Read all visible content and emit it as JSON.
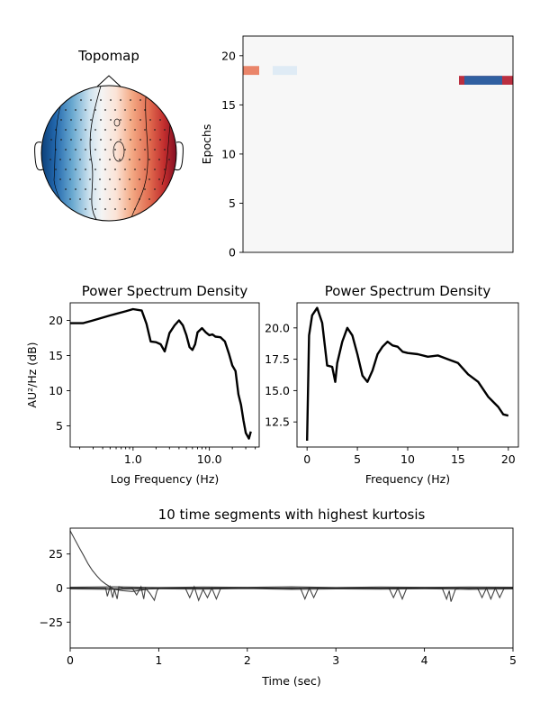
{
  "chart_data": [
    {
      "type": "heatmap",
      "panel": "topomap",
      "title": "Topomap",
      "colormap": "RdBu_r"
    },
    {
      "type": "heatmap",
      "panel": "epochs-image",
      "title": "",
      "ylabel": "Epochs",
      "ylim": [
        0,
        22
      ],
      "yticks": [
        "0",
        "5",
        "10",
        "15",
        "20"
      ],
      "rows": [
        {
          "epoch": 18,
          "x_start": 0.0,
          "x_end": 0.06,
          "value": 0.8,
          "color": "#e8785a"
        },
        {
          "epoch": 18,
          "x_start": 0.11,
          "x_end": 0.2,
          "value": -0.2,
          "color": "#dbe9f4"
        },
        {
          "epoch": 17,
          "x_start": 0.8,
          "x_end": 1.0,
          "value": 1.0,
          "color": "#b2182b"
        },
        {
          "epoch": 17,
          "x_start": 0.82,
          "x_end": 0.96,
          "value": -0.9,
          "color": "#2166ac"
        }
      ]
    },
    {
      "type": "line",
      "panel": "psd-log",
      "title": "Power Spectrum Density",
      "xlabel": "Log Frequency (Hz)",
      "ylabel": "AU²/Hz (dB)",
      "xscale": "log",
      "xlim": [
        0.15,
        45
      ],
      "ylim": [
        2,
        22.5
      ],
      "xticks": [
        "1.0",
        "10.0"
      ],
      "yticks": [
        "5",
        "10",
        "15",
        "20"
      ],
      "x": [
        0.15,
        0.22,
        0.3,
        0.5,
        0.8,
        1.0,
        1.3,
        1.5,
        1.7,
        2.0,
        2.3,
        2.6,
        3.0,
        3.5,
        4.0,
        4.5,
        5.0,
        5.5,
        6.0,
        6.5,
        7.0,
        8.0,
        9.0,
        10.0,
        11.0,
        12.0,
        14.0,
        16.0,
        18.0,
        20.0,
        22.0,
        24.0,
        26.0,
        28.0,
        30.0,
        33.0,
        35.0
      ],
      "y": [
        19.6,
        19.6,
        20.0,
        20.7,
        21.3,
        21.6,
        21.4,
        19.5,
        17.0,
        16.9,
        16.6,
        15.6,
        18.2,
        19.3,
        20.0,
        19.3,
        17.9,
        16.2,
        15.8,
        16.6,
        18.3,
        18.9,
        18.3,
        17.9,
        18.0,
        17.7,
        17.6,
        17.0,
        15.3,
        13.6,
        12.8,
        9.5,
        8.0,
        5.8,
        4.0,
        3.2,
        4.2
      ]
    },
    {
      "type": "line",
      "panel": "psd-linear",
      "title": "Power Spectrum Density",
      "xlabel": "Frequency (Hz)",
      "ylabel": "",
      "xlim": [
        -1,
        21
      ],
      "ylim": [
        10.5,
        22
      ],
      "xticks": [
        "0",
        "5",
        "10",
        "15",
        "20"
      ],
      "yticks": [
        "12.5",
        "15.0",
        "17.5",
        "20.0"
      ],
      "x": [
        0.0,
        0.2,
        0.5,
        1.0,
        1.5,
        2.0,
        2.5,
        2.8,
        3.0,
        3.5,
        4.0,
        4.5,
        5.0,
        5.5,
        6.0,
        6.5,
        7.0,
        7.5,
        8.0,
        8.5,
        9.0,
        9.5,
        10.0,
        11.0,
        12.0,
        13.0,
        14.0,
        15.0,
        16.0,
        17.0,
        18.0,
        18.5,
        19.0,
        19.5,
        20.0
      ],
      "y": [
        11.0,
        19.4,
        21.0,
        21.6,
        20.4,
        17.0,
        16.9,
        15.7,
        17.2,
        18.9,
        20.0,
        19.4,
        17.9,
        16.2,
        15.7,
        16.6,
        17.9,
        18.5,
        18.9,
        18.6,
        18.5,
        18.1,
        18.0,
        17.9,
        17.7,
        17.8,
        17.5,
        17.2,
        16.3,
        15.7,
        14.5,
        14.1,
        13.7,
        13.1,
        13.0
      ]
    },
    {
      "type": "line",
      "panel": "time-segments",
      "title": "10 time segments with highest kurtosis",
      "xlabel": "Time (sec)",
      "ylabel": "",
      "xlim": [
        0,
        5
      ],
      "ylim": [
        -44,
        44
      ],
      "xticks": [
        "0",
        "1",
        "2",
        "3",
        "4",
        "5"
      ],
      "yticks": [
        "−25",
        "0",
        "25"
      ],
      "series": [
        {
          "x": [
            0,
            0.05,
            0.1,
            0.15,
            0.2,
            0.25,
            0.3,
            0.35,
            0.4,
            0.45,
            0.5,
            0.6,
            0.7,
            0.8,
            0.9,
            1.0,
            1.5,
            2.0,
            3.0,
            4.0,
            5.0
          ],
          "y": [
            42,
            36,
            30,
            24,
            18,
            13,
            9,
            5.5,
            3,
            1,
            -1,
            -2,
            -2.5,
            -1.5,
            -0.5,
            0,
            0,
            0,
            0,
            0,
            0
          ]
        },
        {
          "x": [
            0,
            0.4,
            0.42,
            0.45,
            0.48,
            0.5,
            0.53,
            0.55,
            0.6,
            0.7,
            0.75,
            0.8,
            0.83,
            0.85,
            0.9,
            0.95,
            0.98,
            1.0,
            1.3,
            1.35,
            1.4,
            1.45,
            1.5,
            1.55,
            1.6,
            1.65,
            1.7,
            2.0,
            2.6,
            2.65,
            2.7,
            2.75,
            2.8,
            3.0,
            3.6,
            3.65,
            3.7,
            3.75,
            3.8,
            3.9,
            4.2,
            4.25,
            4.28,
            4.3,
            4.35,
            4.4,
            4.6,
            4.65,
            4.7,
            4.75,
            4.8,
            4.85,
            4.9,
            5.0
          ],
          "y": [
            0,
            0,
            -6,
            1,
            -7,
            -1,
            -8,
            1,
            0,
            0,
            -5,
            1,
            -8,
            0,
            -4,
            -9,
            -2,
            0,
            0,
            -7,
            1,
            -9,
            -1,
            -7,
            0,
            -8,
            0,
            0,
            0,
            -8,
            0,
            -7,
            0,
            0,
            0,
            -7,
            0,
            -8,
            0,
            0,
            0,
            -8,
            -2,
            -10,
            -1,
            0,
            0,
            -7,
            0,
            -8,
            0,
            -7,
            0,
            0
          ]
        },
        {
          "x": [
            0,
            0.5,
            1.0,
            1.5,
            2.0,
            2.5,
            3.0,
            3.5,
            4.0,
            4.5,
            5.0
          ],
          "y": [
            0.6,
            0.9,
            0.4,
            0.8,
            0.5,
            0.9,
            0.4,
            0.8,
            0.5,
            0.8,
            0.6
          ]
        },
        {
          "x": [
            0,
            0.5,
            1.0,
            1.5,
            2.0,
            2.5,
            3.0,
            3.5,
            4.0,
            4.5,
            5.0
          ],
          "y": [
            -0.6,
            -0.9,
            -0.5,
            -0.8,
            -0.4,
            -0.9,
            -0.6,
            -0.8,
            -0.5,
            -0.9,
            -0.6
          ]
        },
        {
          "x": [
            0,
            0.5,
            1.0,
            1.5,
            2.0,
            2.5,
            3.0,
            3.5,
            4.0,
            4.5,
            5.0
          ],
          "y": [
            0.2,
            -0.3,
            0.3,
            -0.2,
            0.2,
            -0.3,
            0.3,
            -0.2,
            0.3,
            -0.3,
            0.2
          ]
        }
      ]
    }
  ]
}
